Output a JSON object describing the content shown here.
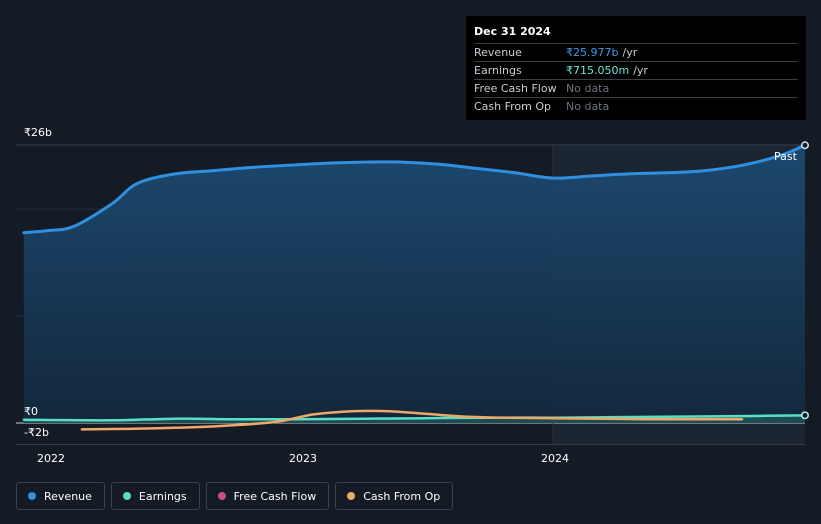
{
  "tooltip": {
    "date": "Dec 31 2024",
    "rows": [
      {
        "label": "Revenue",
        "value": "₹25.977b",
        "unit": "/yr",
        "color": "#3d9be9"
      },
      {
        "label": "Earnings",
        "value": "₹715.050m",
        "unit": "/yr",
        "color": "#6ee7d4"
      },
      {
        "label": "Free Cash Flow",
        "value": "No data",
        "unit": "",
        "color": ""
      },
      {
        "label": "Cash From Op",
        "value": "No data",
        "unit": "",
        "color": ""
      }
    ]
  },
  "past_label": "Past",
  "legend": [
    {
      "label": "Revenue",
      "color": "#2f8fe0"
    },
    {
      "label": "Earnings",
      "color": "#58e0c6"
    },
    {
      "label": "Free Cash Flow",
      "color": "#c8508a"
    },
    {
      "label": "Cash From Op",
      "color": "#f0a868"
    }
  ],
  "chart_data": {
    "type": "area",
    "x_ticks": [
      "2022",
      "2023",
      "2024"
    ],
    "y_ticks": [
      "₹26b",
      "₹0",
      "-₹2b"
    ],
    "ylim": [
      -2,
      26
    ],
    "xlim": [
      2021.9,
      2025.0
    ],
    "series": [
      {
        "name": "Revenue",
        "unit": "₹b",
        "color": "#2f8fe0",
        "x": [
          2021.9,
          2022.0,
          2022.1,
          2022.25,
          2022.35,
          2022.5,
          2022.65,
          2022.8,
          2022.95,
          2023.1,
          2023.25,
          2023.4,
          2023.55,
          2023.7,
          2023.85,
          2024.0,
          2024.15,
          2024.3,
          2024.45,
          2024.6,
          2024.75,
          2024.9,
          2025.0
        ],
        "y": [
          17.8,
          18.0,
          18.4,
          20.5,
          22.4,
          23.3,
          23.6,
          23.9,
          24.1,
          24.3,
          24.4,
          24.4,
          24.2,
          23.8,
          23.4,
          22.9,
          23.1,
          23.3,
          23.4,
          23.6,
          24.1,
          25.0,
          25.977
        ]
      },
      {
        "name": "Earnings",
        "unit": "₹b",
        "color": "#58e0c6",
        "x": [
          2021.9,
          2022.25,
          2022.5,
          2022.75,
          2023.0,
          2023.25,
          2023.5,
          2023.75,
          2024.0,
          2024.25,
          2024.5,
          2024.75,
          2025.0
        ],
        "y": [
          0.3,
          0.25,
          0.4,
          0.35,
          0.35,
          0.4,
          0.45,
          0.5,
          0.5,
          0.55,
          0.6,
          0.65,
          0.715
        ]
      },
      {
        "name": "Cash From Op",
        "unit": "₹b",
        "color": "#f0a868",
        "x": [
          2022.13,
          2022.3,
          2022.5,
          2022.7,
          2022.9,
          2023.05,
          2023.2,
          2023.35,
          2023.5,
          2023.65,
          2023.8,
          2024.0,
          2024.2,
          2024.4,
          2024.6,
          2024.75
        ],
        "y": [
          -0.6,
          -0.55,
          -0.45,
          -0.25,
          0.1,
          0.8,
          1.1,
          1.1,
          0.85,
          0.6,
          0.5,
          0.45,
          0.4,
          0.35,
          0.35,
          0.35
        ]
      }
    ]
  }
}
